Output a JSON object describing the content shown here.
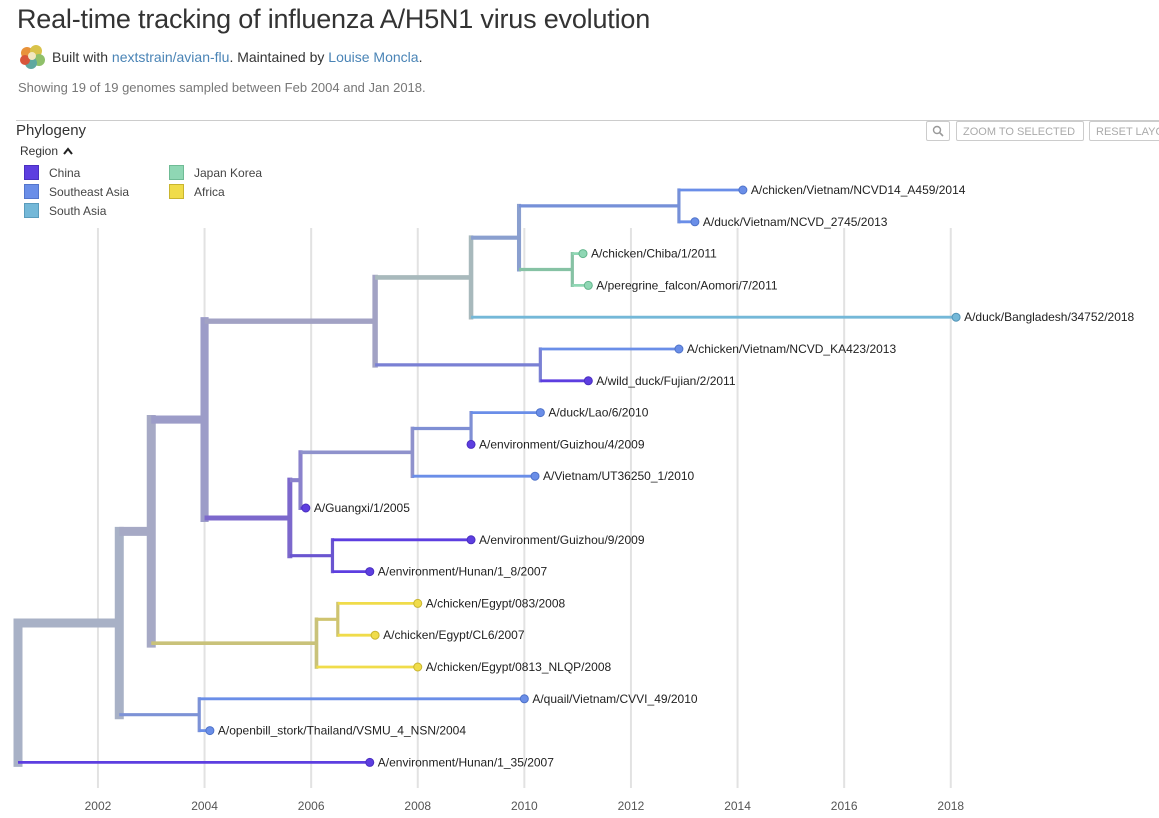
{
  "header": {
    "title": "Real-time tracking of influenza A/H5N1 virus evolution",
    "built_with_prefix": "Built with ",
    "built_with_link": "nextstrain/avian-flu",
    "maintained_prefix": ". Maintained by ",
    "maintainer_link": "Louise Moncla",
    "maintainer_suffix": ".",
    "summary": "Showing 19 of 19 genomes sampled between Feb 2004 and Jan 2018."
  },
  "panel": {
    "title": "Phylogeny",
    "zoom_label": "ZOOM TO SELECTED",
    "reset_label": "RESET LAYOUT",
    "search_icon": "magnifier-icon"
  },
  "legend": {
    "title": "Region",
    "toggle_icon": "chevron-up-icon",
    "items": [
      {
        "label": "China",
        "color": "#5d3ee0"
      },
      {
        "label": "Southeast Asia",
        "color": "#6a8ee8"
      },
      {
        "label": "South Asia",
        "color": "#74b8d8"
      },
      {
        "label": "Japan Korea",
        "color": "#8fd7b4"
      },
      {
        "label": "Africa",
        "color": "#f0dc4a"
      }
    ]
  },
  "tree": {
    "xaxis": {
      "min": 2000.5,
      "max": 2019.5,
      "ticks": [
        2002,
        2004,
        2006,
        2008,
        2010,
        2012,
        2014,
        2016,
        2018
      ]
    },
    "tips": [
      {
        "label": "A/chicken/Vietnam/NCVD14_A459/2014",
        "date": 2014.1,
        "region": "Southeast Asia"
      },
      {
        "label": "A/duck/Vietnam/NCVD_2745/2013",
        "date": 2013.2,
        "region": "Southeast Asia"
      },
      {
        "label": "A/chicken/Chiba/1/2011",
        "date": 2011.1,
        "region": "Japan Korea"
      },
      {
        "label": "A/peregrine_falcon/Aomori/7/2011",
        "date": 2011.2,
        "region": "Japan Korea"
      },
      {
        "label": "A/duck/Bangladesh/34752/2018",
        "date": 2018.1,
        "region": "South Asia"
      },
      {
        "label": "A/chicken/Vietnam/NCVD_KA423/2013",
        "date": 2012.9,
        "region": "Southeast Asia"
      },
      {
        "label": "A/wild_duck/Fujian/2/2011",
        "date": 2011.2,
        "region": "China"
      },
      {
        "label": "A/duck/Lao/6/2010",
        "date": 2010.3,
        "region": "Southeast Asia"
      },
      {
        "label": "A/environment/Guizhou/4/2009",
        "date": 2009.0,
        "region": "China"
      },
      {
        "label": "A/Vietnam/UT36250_1/2010",
        "date": 2010.2,
        "region": "Southeast Asia"
      },
      {
        "label": "A/Guangxi/1/2005",
        "date": 2005.9,
        "region": "China"
      },
      {
        "label": "A/environment/Guizhou/9/2009",
        "date": 2009.0,
        "region": "China"
      },
      {
        "label": "A/environment/Hunan/1_8/2007",
        "date": 2007.1,
        "region": "China"
      },
      {
        "label": "A/chicken/Egypt/083/2008",
        "date": 2008.0,
        "region": "Africa"
      },
      {
        "label": "A/chicken/Egypt/CL6/2007",
        "date": 2007.2,
        "region": "Africa"
      },
      {
        "label": "A/chicken/Egypt/0813_NLQP/2008",
        "date": 2008.0,
        "region": "Africa"
      },
      {
        "label": "A/quail/Vietnam/CVVI_49/2010",
        "date": 2010.0,
        "region": "Southeast Asia"
      },
      {
        "label": "A/openbill_stork/Thailand/VSMU_4_NSN/2004",
        "date": 2004.1,
        "region": "Southeast Asia"
      },
      {
        "label": "A/environment/Hunan/1_35/2007",
        "date": 2007.1,
        "region": "China"
      }
    ]
  }
}
